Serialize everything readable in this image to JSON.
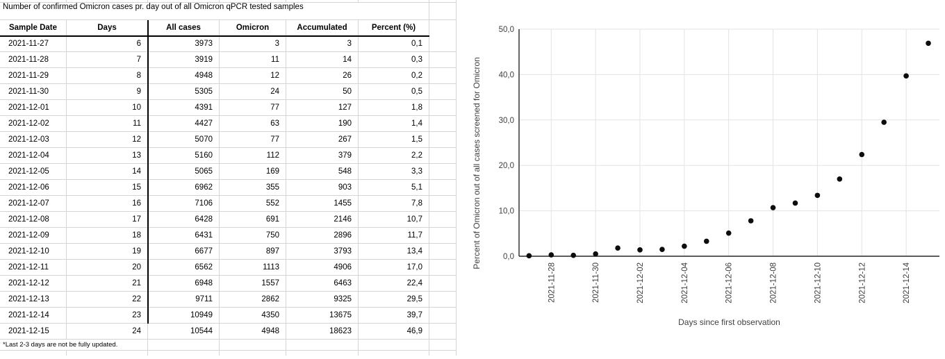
{
  "sheet": {
    "title": "Number of confirmed Omicron cases pr. day out of all Omicron qPCR tested samples",
    "footnote": "*Last 2-3 days are not be fully updated.",
    "table": {
      "columns": [
        "Sample Date",
        "Days",
        "All cases",
        "Omicron",
        "Accumulated",
        "Percent (%)"
      ],
      "rows": [
        [
          "2021-11-27",
          "6",
          "3973",
          "3",
          "3",
          "0,1"
        ],
        [
          "2021-11-28",
          "7",
          "3919",
          "11",
          "14",
          "0,3"
        ],
        [
          "2021-11-29",
          "8",
          "4948",
          "12",
          "26",
          "0,2"
        ],
        [
          "2021-11-30",
          "9",
          "5305",
          "24",
          "50",
          "0,5"
        ],
        [
          "2021-12-01",
          "10",
          "4391",
          "77",
          "127",
          "1,8"
        ],
        [
          "2021-12-02",
          "11",
          "4427",
          "63",
          "190",
          "1,4"
        ],
        [
          "2021-12-03",
          "12",
          "5070",
          "77",
          "267",
          "1,5"
        ],
        [
          "2021-12-04",
          "13",
          "5160",
          "112",
          "379",
          "2,2"
        ],
        [
          "2021-12-05",
          "14",
          "5065",
          "169",
          "548",
          "3,3"
        ],
        [
          "2021-12-06",
          "15",
          "6962",
          "355",
          "903",
          "5,1"
        ],
        [
          "2021-12-07",
          "16",
          "7106",
          "552",
          "1455",
          "7,8"
        ],
        [
          "2021-12-08",
          "17",
          "6428",
          "691",
          "2146",
          "10,7"
        ],
        [
          "2021-12-09",
          "18",
          "6431",
          "750",
          "2896",
          "11,7"
        ],
        [
          "2021-12-10",
          "19",
          "6677",
          "897",
          "3793",
          "13,4"
        ],
        [
          "2021-12-11",
          "20",
          "6562",
          "1113",
          "4906",
          "17,0"
        ],
        [
          "2021-12-12",
          "21",
          "6948",
          "1557",
          "6463",
          "22,4"
        ],
        [
          "2021-12-13",
          "22",
          "9711",
          "2862",
          "9325",
          "29,5"
        ],
        [
          "2021-12-14",
          "23",
          "10949",
          "4350",
          "13675",
          "39,7"
        ],
        [
          "2021-12-15",
          "24",
          "10544",
          "4948",
          "18623",
          "46,9"
        ]
      ]
    }
  },
  "chart_data": {
    "type": "scatter",
    "x": [
      6,
      7,
      8,
      9,
      10,
      11,
      12,
      13,
      14,
      15,
      16,
      17,
      18,
      19,
      20,
      21,
      22,
      23,
      24
    ],
    "y": [
      0.1,
      0.3,
      0.2,
      0.5,
      1.8,
      1.4,
      1.5,
      2.2,
      3.3,
      5.1,
      7.8,
      10.7,
      11.7,
      13.4,
      17.0,
      22.4,
      29.5,
      39.7,
      46.9
    ],
    "xlabel": "Days since first observation",
    "ylabel": "Percent of Omicron out of all cases screened for Omicron",
    "xlim": [
      5.55,
      24.5
    ],
    "ylim": [
      0,
      50
    ],
    "x_ticks": {
      "days": [
        7,
        9,
        11,
        13,
        15,
        17,
        19,
        21,
        23
      ],
      "labels": [
        "2021-11-28",
        "2021-11-30",
        "2021-12-02",
        "2021-12-04",
        "2021-12-06",
        "2021-12-08",
        "2021-12-10",
        "2021-12-12",
        "2021-12-14"
      ]
    },
    "y_ticks": {
      "values": [
        0,
        10,
        20,
        30,
        40,
        50
      ],
      "labels": [
        "0,0",
        "10,0",
        "20,0",
        "30,0",
        "40,0",
        "50,0"
      ]
    },
    "grid": true,
    "legend": "none",
    "point_color": "#0d0d0d",
    "grid_color": "#e3e3e3",
    "axis_color": "#262626",
    "tick_label_color": "#3f3f3f"
  }
}
